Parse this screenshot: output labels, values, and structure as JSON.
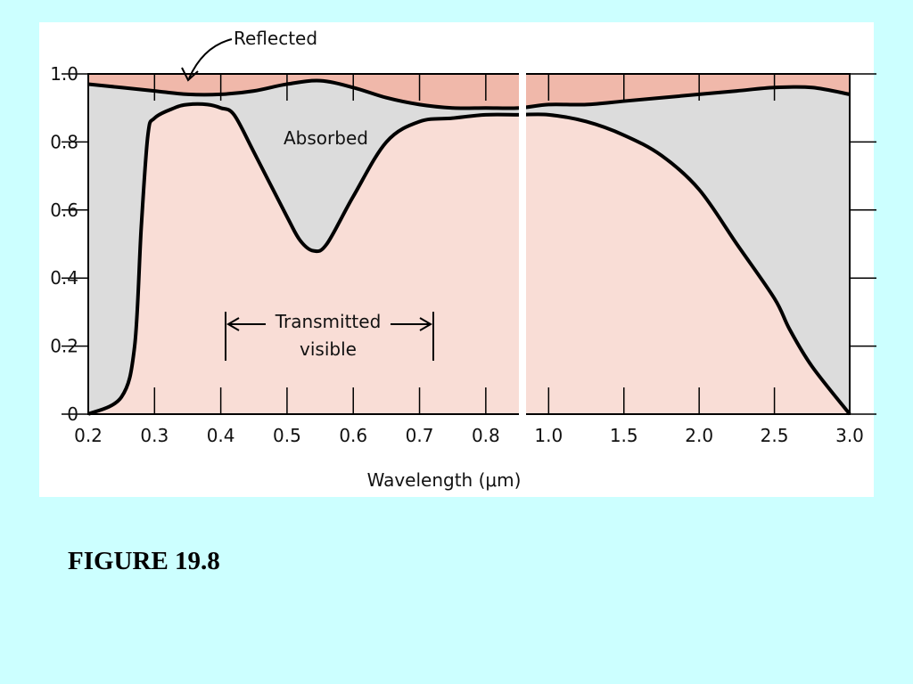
{
  "caption": "FIGURE 19.8",
  "colors": {
    "background": "#ccffff",
    "reflected": "#f0b8aa",
    "absorbed": "#dcdcdc",
    "transmitted": "#f9ddd6",
    "line": "#000000"
  },
  "chart_data": {
    "type": "area",
    "title": "",
    "xlabel": "Wavelength (μm)",
    "ylabel": "",
    "ylim": [
      0,
      1.0
    ],
    "x_scale": "broken: linear 0.2–0.8 µm, compressed linear 1.0–3.0 µm",
    "xlim": [
      0.2,
      3.0
    ],
    "x_ticks": [
      "0.2",
      "0.3",
      "0.4",
      "0.5",
      "0.6",
      "0.7",
      "0.8",
      "1.0",
      "1.5",
      "2.0",
      "2.5",
      "3.0"
    ],
    "y_ticks": [
      "0",
      "0.2",
      "0.4",
      "0.6",
      "0.8",
      "1.0"
    ],
    "regions": [
      "Reflected",
      "Absorbed",
      "Transmitted"
    ],
    "series": [
      {
        "name": "Reflected",
        "x": [
          0.2,
          0.25,
          0.3,
          0.35,
          0.4,
          0.45,
          0.5,
          0.55,
          0.6,
          0.65,
          0.7,
          0.75,
          0.8,
          0.85,
          1.0,
          1.25,
          1.5,
          1.75,
          2.0,
          2.25,
          2.5,
          2.75,
          3.0
        ],
        "values": [
          0.97,
          0.96,
          0.95,
          0.94,
          0.94,
          0.95,
          0.97,
          0.98,
          0.96,
          0.93,
          0.91,
          0.9,
          0.9,
          0.9,
          0.91,
          0.91,
          0.92,
          0.93,
          0.94,
          0.95,
          0.96,
          0.96,
          0.94
        ]
      },
      {
        "name": "Transmitted",
        "x": [
          0.2,
          0.25,
          0.27,
          0.28,
          0.29,
          0.3,
          0.33,
          0.35,
          0.38,
          0.4,
          0.42,
          0.45,
          0.5,
          0.52,
          0.54,
          0.56,
          0.6,
          0.65,
          0.7,
          0.75,
          0.8,
          0.85,
          1.0,
          1.25,
          1.5,
          1.75,
          2.0,
          2.25,
          2.5,
          2.6,
          2.75,
          3.0
        ],
        "values": [
          0.0,
          0.05,
          0.2,
          0.55,
          0.82,
          0.87,
          0.9,
          0.91,
          0.91,
          0.9,
          0.88,
          0.77,
          0.58,
          0.51,
          0.48,
          0.5,
          0.64,
          0.8,
          0.86,
          0.87,
          0.88,
          0.88,
          0.88,
          0.86,
          0.82,
          0.76,
          0.66,
          0.5,
          0.34,
          0.25,
          0.14,
          0.0
        ]
      }
    ],
    "annotations": {
      "reflected": "Reflected",
      "absorbed": "Absorbed",
      "transmitted_line1": "Transmitted",
      "transmitted_line2": "visible",
      "visible_range": [
        0.4,
        0.7
      ]
    }
  }
}
